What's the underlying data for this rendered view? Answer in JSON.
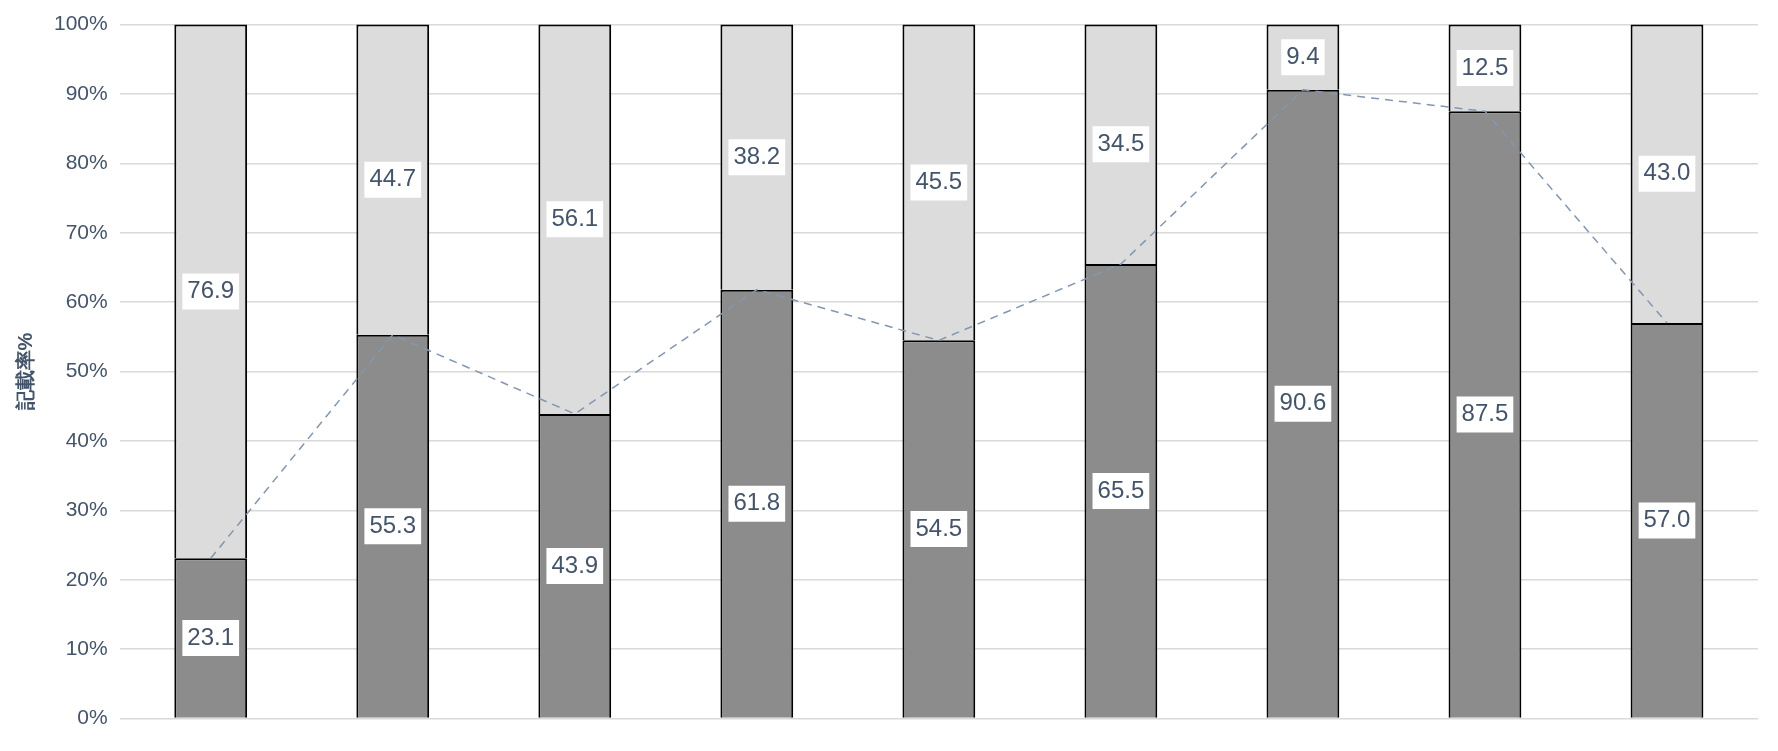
{
  "chart_data": {
    "type": "bar",
    "stacked": true,
    "ylabel": "記載率%",
    "categories": [
      null,
      null,
      null,
      null,
      null,
      null,
      null,
      null,
      null
    ],
    "series": [
      {
        "color": "#8c8c8c",
        "values": [
          23.1,
          55.3,
          43.9,
          61.8,
          54.5,
          65.5,
          90.6,
          87.5,
          57.0
        ],
        "value_labels": [
          "23.1",
          "55.3",
          "43.9",
          "61.8",
          "54.5",
          "65.5",
          "90.6",
          "87.5",
          "57.0"
        ]
      },
      {
        "color": "#dcdcdc",
        "values": [
          76.9,
          44.7,
          56.1,
          38.2,
          45.5,
          34.5,
          9.4,
          12.5,
          43.0
        ],
        "value_labels": [
          "76.9",
          "44.7",
          "56.1",
          "38.2",
          "45.5",
          "34.5",
          "9.4",
          "12.5",
          "43.0"
        ]
      },
      {
        "type": "line",
        "color": "#8497b0",
        "line_style": "dashed",
        "marker": "none",
        "values": [
          23.1,
          55.3,
          43.9,
          61.8,
          54.5,
          65.5,
          90.6,
          87.5,
          57.0
        ]
      }
    ],
    "ylim": [
      0,
      100
    ],
    "yticks": [
      {
        "value": 0,
        "label": "0%"
      },
      {
        "value": 10,
        "label": "10%"
      },
      {
        "value": 20,
        "label": "20%"
      },
      {
        "value": 30,
        "label": "30%"
      },
      {
        "value": 40,
        "label": "40%"
      },
      {
        "value": 50,
        "label": "50%"
      },
      {
        "value": 60,
        "label": "60%"
      },
      {
        "value": 70,
        "label": "70%"
      },
      {
        "value": 80,
        "label": "80%"
      },
      {
        "value": 90,
        "label": "90%"
      },
      {
        "value": 100,
        "label": "100%"
      }
    ],
    "grid": "y",
    "legend": false
  }
}
